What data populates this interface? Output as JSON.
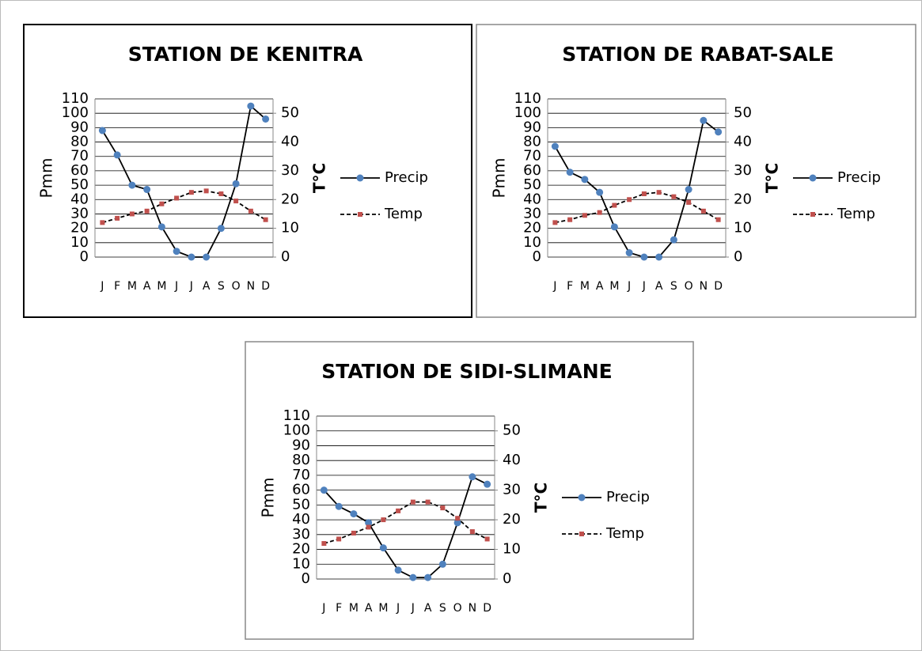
{
  "chart_data": [
    {
      "type": "line",
      "title": "STATION DE KENITRA",
      "y_label": "Pmm",
      "y2_label": "T°C",
      "categories": [
        "J",
        "F",
        "M",
        "A",
        "M",
        "J",
        "J",
        "A",
        "S",
        "O",
        "N",
        "D"
      ],
      "series": [
        {
          "name": "Precip",
          "color": "#4f81bd",
          "line_color": "#000000",
          "line_style": "solid",
          "marker": "circle",
          "values": [
            88,
            71,
            50,
            47,
            21,
            4,
            0,
            0,
            20,
            51,
            105,
            96
          ]
        },
        {
          "name": "Temp",
          "axis": "y2",
          "color": "#c0504d",
          "line_color": "#000000",
          "line_style": "dashed",
          "marker": "square",
          "values": [
            12,
            13.5,
            15,
            16,
            18.5,
            20.5,
            22.5,
            23,
            22,
            19.5,
            16,
            13
          ]
        }
      ],
      "ylim": [
        0,
        110
      ],
      "yticks": [
        0,
        10,
        20,
        30,
        40,
        50,
        60,
        70,
        80,
        90,
        100,
        110
      ],
      "y2lim": [
        0,
        55
      ],
      "y2ticks": [
        0,
        10,
        20,
        30,
        40,
        50
      ],
      "grid": true,
      "legend": "right",
      "frame_color": "#000000"
    },
    {
      "type": "line",
      "title": "STATION DE RABAT-SALE",
      "y_label": "Pmm",
      "y2_label": "T°C",
      "categories": [
        "J",
        "F",
        "M",
        "A",
        "M",
        "J",
        "J",
        "A",
        "S",
        "O",
        "N",
        "D"
      ],
      "series": [
        {
          "name": "Precip",
          "color": "#4f81bd",
          "line_color": "#000000",
          "line_style": "solid",
          "marker": "circle",
          "values": [
            77,
            59,
            54,
            45,
            21,
            3,
            0,
            0,
            12,
            47,
            95,
            87
          ]
        },
        {
          "name": "Temp",
          "axis": "y2",
          "color": "#c0504d",
          "line_color": "#000000",
          "line_style": "dashed",
          "marker": "square",
          "values": [
            12,
            13,
            14.5,
            15.5,
            18,
            20,
            22,
            22.5,
            21,
            19,
            16,
            13
          ]
        }
      ],
      "ylim": [
        0,
        110
      ],
      "yticks": [
        0,
        10,
        20,
        30,
        40,
        50,
        60,
        70,
        80,
        90,
        100,
        110
      ],
      "y2lim": [
        0,
        55
      ],
      "y2ticks": [
        0,
        10,
        20,
        30,
        40,
        50
      ],
      "grid": true,
      "legend": "right",
      "frame_color": "#888888"
    },
    {
      "type": "line",
      "title": "STATION DE SIDI-SLIMANE",
      "y_label": "Pmm",
      "y2_label": "T°C",
      "categories": [
        "J",
        "F",
        "M",
        "A",
        "M",
        "J",
        "J",
        "A",
        "S",
        "O",
        "N",
        "D"
      ],
      "series": [
        {
          "name": "Precip",
          "color": "#4f81bd",
          "line_color": "#000000",
          "line_style": "solid",
          "marker": "circle",
          "values": [
            60,
            49,
            44,
            38,
            21,
            6,
            1,
            1,
            10,
            38,
            69,
            64
          ]
        },
        {
          "name": "Temp",
          "axis": "y2",
          "color": "#c0504d",
          "line_color": "#000000",
          "line_style": "dashed",
          "marker": "square",
          "values": [
            12,
            13.5,
            15.5,
            17.5,
            20,
            23,
            26,
            26,
            24,
            20.5,
            16,
            13.5
          ]
        }
      ],
      "ylim": [
        0,
        110
      ],
      "yticks": [
        0,
        10,
        20,
        30,
        40,
        50,
        60,
        70,
        80,
        90,
        100,
        110
      ],
      "y2lim": [
        0,
        55
      ],
      "y2ticks": [
        0,
        10,
        20,
        30,
        40,
        50
      ],
      "grid": true,
      "legend": "right",
      "frame_color": "#888888"
    }
  ]
}
